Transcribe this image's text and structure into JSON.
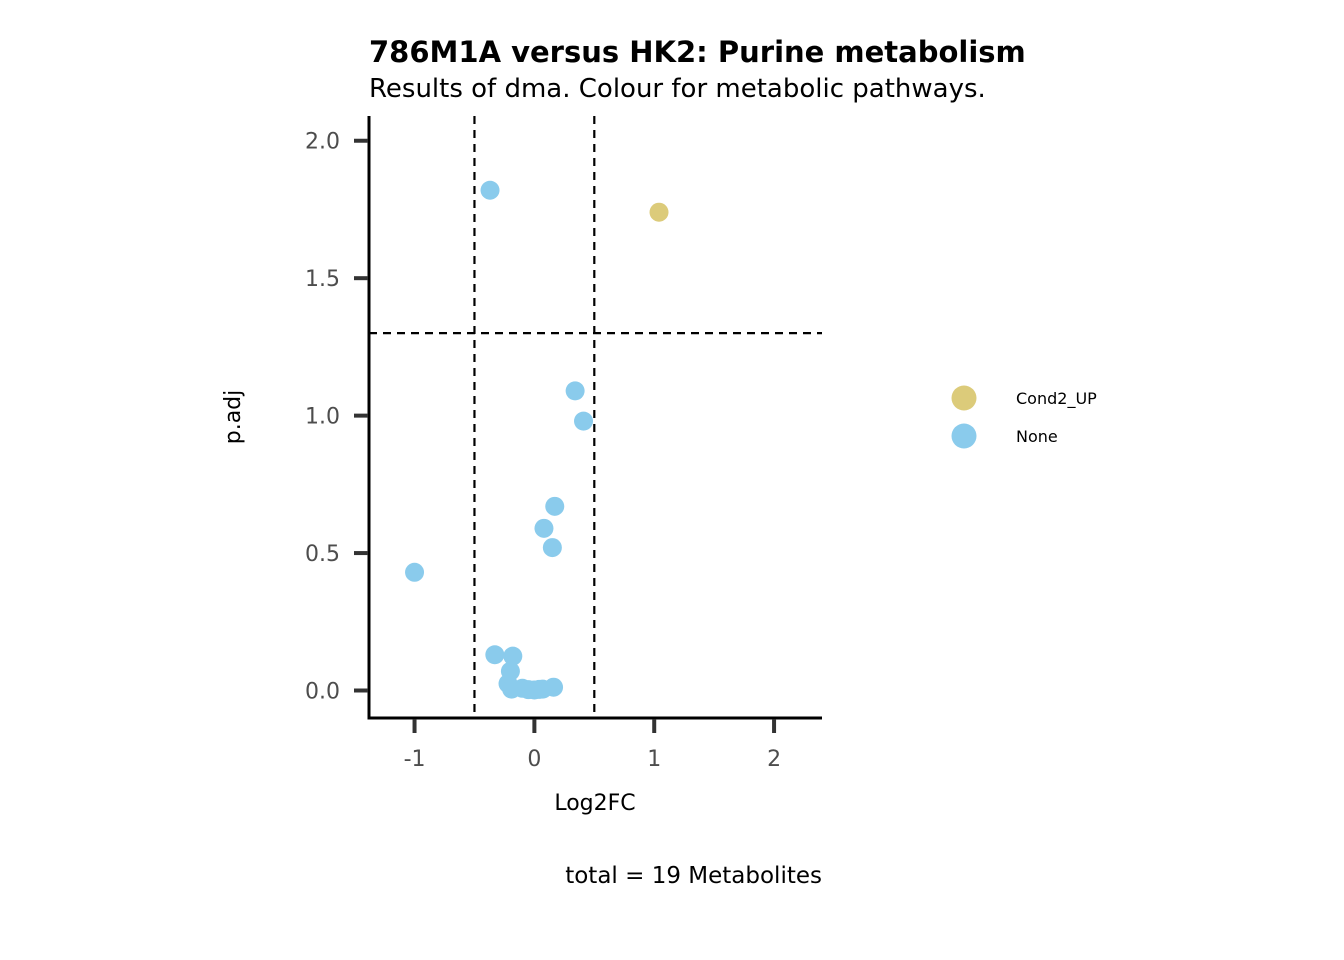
{
  "chart_data": {
    "type": "scatter",
    "title": "786M1A versus HK2: Purine metabolism",
    "subtitle": "Results of dma. Colour for metabolic pathways.",
    "xlabel": "Log2FC",
    "ylabel": "p.adj",
    "caption": "total = 19 Metabolites",
    "xlim": [
      -1.38,
      2.4
    ],
    "ylim": [
      -0.1,
      2.09
    ],
    "x_ticks": [
      -1,
      0,
      1,
      2
    ],
    "x_tick_labels": [
      "-1",
      "0",
      "1",
      "2"
    ],
    "y_ticks": [
      0.0,
      0.5,
      1.0,
      1.5,
      2.0
    ],
    "y_tick_labels": [
      "0.0",
      "0.5",
      "1.0",
      "1.5",
      "2.0"
    ],
    "grid": false,
    "legend_position": "right",
    "reference_lines": {
      "vertical": [
        -0.5,
        0.5
      ],
      "horizontal": [
        1.3
      ]
    },
    "colors": {
      "Cond2_UP": "#dccb7a",
      "None": "#8acbec"
    },
    "series": [
      {
        "name": "Cond2_UP",
        "points": [
          {
            "x": 1.04,
            "y": 1.74
          }
        ]
      },
      {
        "name": "None",
        "points": [
          {
            "x": -0.37,
            "y": 1.82
          },
          {
            "x": 0.34,
            "y": 1.09
          },
          {
            "x": 0.41,
            "y": 0.98
          },
          {
            "x": 0.17,
            "y": 0.67
          },
          {
            "x": 0.08,
            "y": 0.59
          },
          {
            "x": 0.15,
            "y": 0.52
          },
          {
            "x": -1.0,
            "y": 0.43
          },
          {
            "x": -0.33,
            "y": 0.13
          },
          {
            "x": -0.18,
            "y": 0.125
          },
          {
            "x": -0.2,
            "y": 0.07
          },
          {
            "x": -0.22,
            "y": 0.025
          },
          {
            "x": -0.19,
            "y": 0.005
          },
          {
            "x": -0.1,
            "y": 0.008
          },
          {
            "x": -0.05,
            "y": 0.003
          },
          {
            "x": 0.0,
            "y": 0.002
          },
          {
            "x": 0.04,
            "y": 0.004
          },
          {
            "x": 0.07,
            "y": 0.005
          },
          {
            "x": 0.16,
            "y": 0.012
          }
        ]
      }
    ]
  }
}
